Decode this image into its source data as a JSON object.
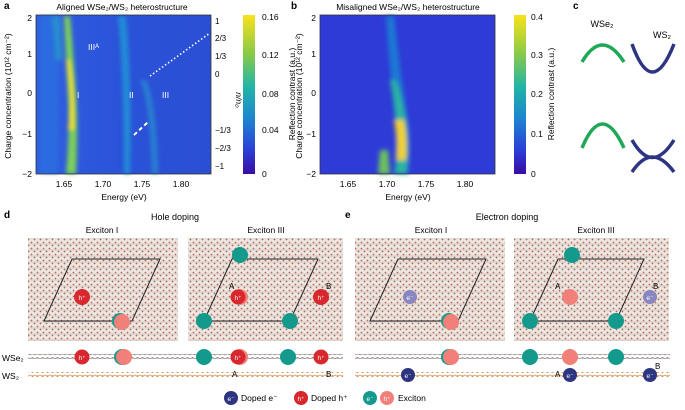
{
  "panels": {
    "a": {
      "label": "a",
      "title": "Aligned WSe₂/WS₂ heterostructure",
      "ylabel": "Charge concentration (10¹² cm⁻²)",
      "xlabel": "Energy (eV)",
      "xticks": [
        "1.65",
        "1.70",
        "1.75",
        "1.80"
      ],
      "yticks": [
        "−2",
        "−1",
        "0",
        "1",
        "2"
      ],
      "right_label": "n/n₀",
      "right_ticks": [
        "1",
        "2/3",
        "1/3",
        "0",
        "−1/3",
        "−2/3",
        "−1"
      ],
      "colorbar_label": "Reflection contrast (a.u.)",
      "colorbar_ticks": [
        "0",
        "0.04",
        "0.08",
        "0.12",
        "0.16"
      ],
      "annotations": [
        "IIIᴬ",
        "I",
        "II",
        "III"
      ]
    },
    "b": {
      "label": "b",
      "title": "Misaligned WSe₂/WS₂ heterostructure",
      "ylabel": "Charge concentration (10¹² cm⁻²)",
      "xlabel": "Energy (eV)",
      "xticks": [
        "1.65",
        "1.70",
        "1.75",
        "1.80"
      ],
      "yticks": [
        "−2",
        "−1",
        "0",
        "1",
        "2"
      ],
      "colorbar_label": "Reflection contrast (a.u.)",
      "colorbar_ticks": [
        "0",
        "0.1",
        "0.2",
        "0.3",
        "0.4"
      ]
    },
    "c": {
      "label": "c",
      "col1": "WSe₂",
      "col2": "WS₂"
    },
    "d": {
      "label": "d",
      "title": "Hole doping",
      "sub1": "Exciton I",
      "sub2": "Exciton III",
      "carrier": "h⁺",
      "site_a": "A",
      "site_b": "B",
      "layer1": "WSe₂",
      "layer2": "WS₂"
    },
    "e": {
      "label": "e",
      "title": "Electron doping",
      "sub1": "Exciton I",
      "sub2": "Exciton III",
      "carrier": "e⁻",
      "site_a": "A",
      "site_b": "B"
    }
  },
  "legend": {
    "items": [
      {
        "symbol": "e⁻",
        "label": "Doped e⁻"
      },
      {
        "symbol": "h⁺",
        "label": "Doped h⁺"
      },
      {
        "symbol_e": "e⁻",
        "symbol_h": "h⁺",
        "label": "Exciton"
      }
    ]
  },
  "colors": {
    "electron": "#2e3580",
    "electron_light": "#8a86c0",
    "hole": "#d8282e",
    "exciton_e": "#149a8c",
    "exciton_h": "#f08078",
    "wse2_band": "#1fa857",
    "ws2_band": "#2e3580"
  }
}
